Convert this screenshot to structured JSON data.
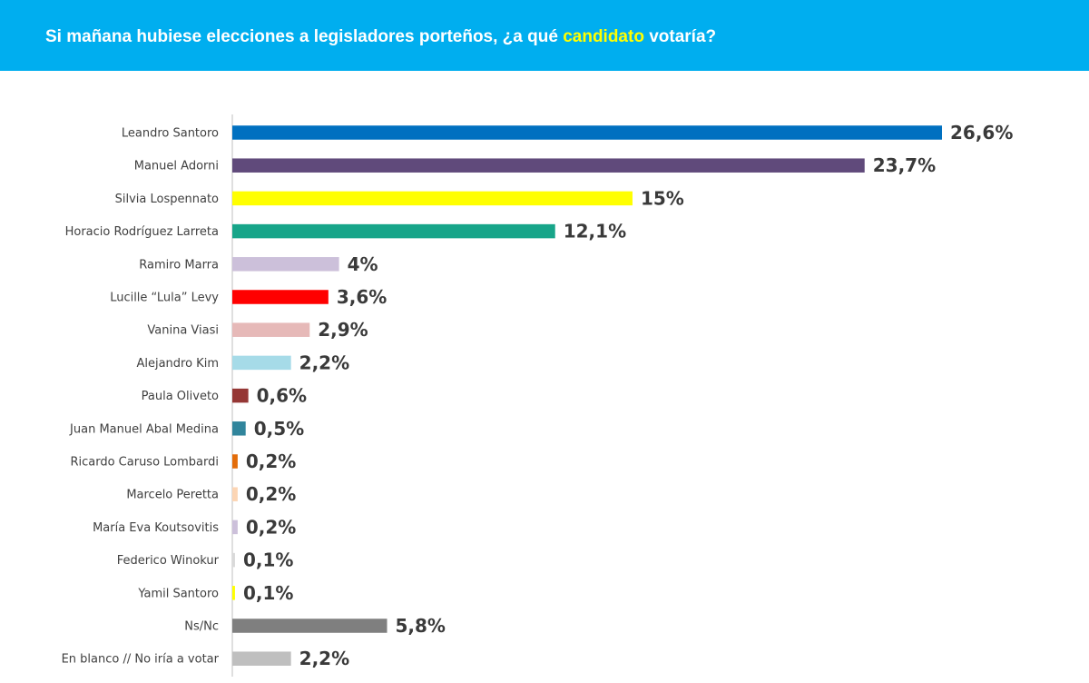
{
  "header": {
    "title_before": "Si mañana hubiese elecciones a legisladores porteños, ¿a qué ",
    "title_highlight": "candidato",
    "title_after": " votaría?",
    "background_color": "#00aeef",
    "highlight_color": "#ffff00"
  },
  "chart_data": {
    "type": "bar",
    "orientation": "horizontal",
    "title": "Si mañana hubiese elecciones a legisladores porteños, ¿a qué candidato votaría?",
    "xlabel": "",
    "ylabel": "",
    "xlim": [
      0,
      26.6
    ],
    "grid": false,
    "categories": [
      "Leandro Santoro",
      "Manuel Adorni",
      "Silvia Lospennato",
      "Horacio Rodríguez Larreta",
      "Ramiro Marra",
      "Lucille “Lula” Levy",
      "Vanina Viasi",
      "Alejandro Kim",
      "Paula Oliveto",
      "Juan Manuel Abal Medina",
      "Ricardo Caruso Lombardi",
      "Marcelo Peretta",
      "María Eva Koutsovitis",
      "Federico Winokur",
      "Yamil Santoro",
      "Ns/Nc",
      "En blanco // No iría a votar"
    ],
    "values": [
      26.6,
      23.7,
      15,
      12.1,
      4,
      3.6,
      2.9,
      2.2,
      0.6,
      0.5,
      0.2,
      0.2,
      0.2,
      0.1,
      0.1,
      5.8,
      2.2
    ],
    "value_labels": [
      "26,6%",
      "23,7%",
      "15%",
      "12,1%",
      "4%",
      "3,6%",
      "2,9%",
      "2,2%",
      "0,6%",
      "0,5%",
      "0,2%",
      "0,2%",
      "0,2%",
      "0,1%",
      "0,1%",
      "5,8%",
      "2,2%"
    ],
    "colors": [
      "#0070c0",
      "#604a7b",
      "#ffff00",
      "#17a589",
      "#ccc0da",
      "#ff0000",
      "#e6b9b8",
      "#a6dbe8",
      "#953735",
      "#31859c",
      "#e36c09",
      "#fcd5b4",
      "#ccc0da",
      "#d9d9d9",
      "#ffff00",
      "#7f7f7f",
      "#bfbfbf"
    ]
  }
}
